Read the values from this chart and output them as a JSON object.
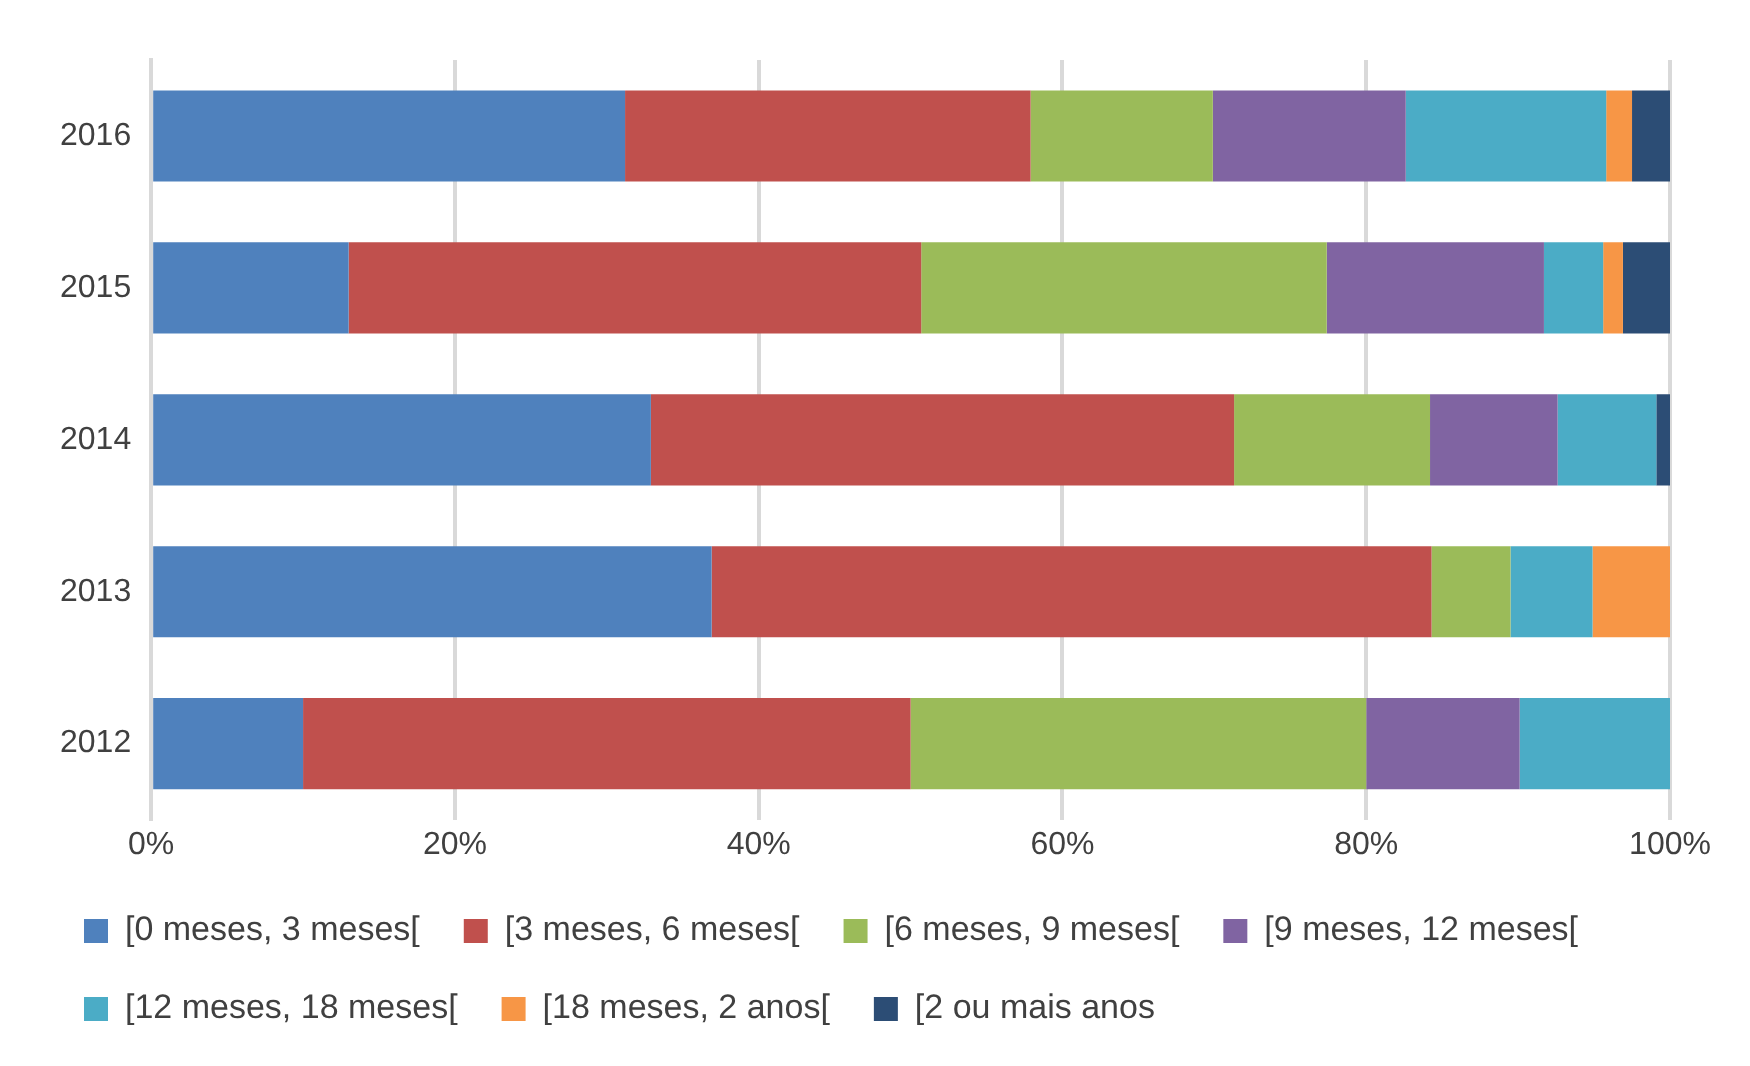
{
  "chart_data": {
    "type": "bar",
    "orientation": "horizontal",
    "stacked": true,
    "categories": [
      "2016",
      "2015",
      "2014",
      "2013",
      "2012"
    ],
    "series": [
      {
        "name": "[0 meses, 3 meses[",
        "color": "#4f81bd",
        "values": [
          31.2,
          13.0,
          32.9,
          36.9,
          10.0
        ]
      },
      {
        "name": "[3 meses, 6 meses[",
        "color": "#c0504d",
        "values": [
          26.7,
          37.7,
          38.4,
          47.4,
          40.0
        ]
      },
      {
        "name": "[6 meses, 9 meses[",
        "color": "#9bbb59",
        "values": [
          12.0,
          26.7,
          12.9,
          5.2,
          30.0
        ]
      },
      {
        "name": "[9 meses, 12 meses[",
        "color": "#8064a2",
        "values": [
          12.7,
          14.3,
          8.4,
          null,
          10.1
        ]
      },
      {
        "name": "[12 meses, 18 meses[",
        "color": "#4bacc6",
        "values": [
          13.2,
          3.9,
          6.5,
          5.4,
          9.9
        ]
      },
      {
        "name": "[18 meses, 2 anos[",
        "color": "#f79646",
        "values": [
          1.7,
          1.3,
          null,
          5.1,
          null
        ]
      },
      {
        "name": "[2 ou mais anos",
        "color": "#2c4d75",
        "values": [
          2.5,
          3.1,
          0.9,
          null,
          null
        ]
      }
    ],
    "xlim": [
      0,
      100
    ],
    "xticks": [
      {
        "value": 0,
        "label": "0%"
      },
      {
        "value": 20,
        "label": "20%"
      },
      {
        "value": 40,
        "label": "40%"
      },
      {
        "value": 60,
        "label": "60%"
      },
      {
        "value": 80,
        "label": "80%"
      },
      {
        "value": 100,
        "label": "100%"
      }
    ],
    "grid": "x",
    "legend": "bottom"
  }
}
